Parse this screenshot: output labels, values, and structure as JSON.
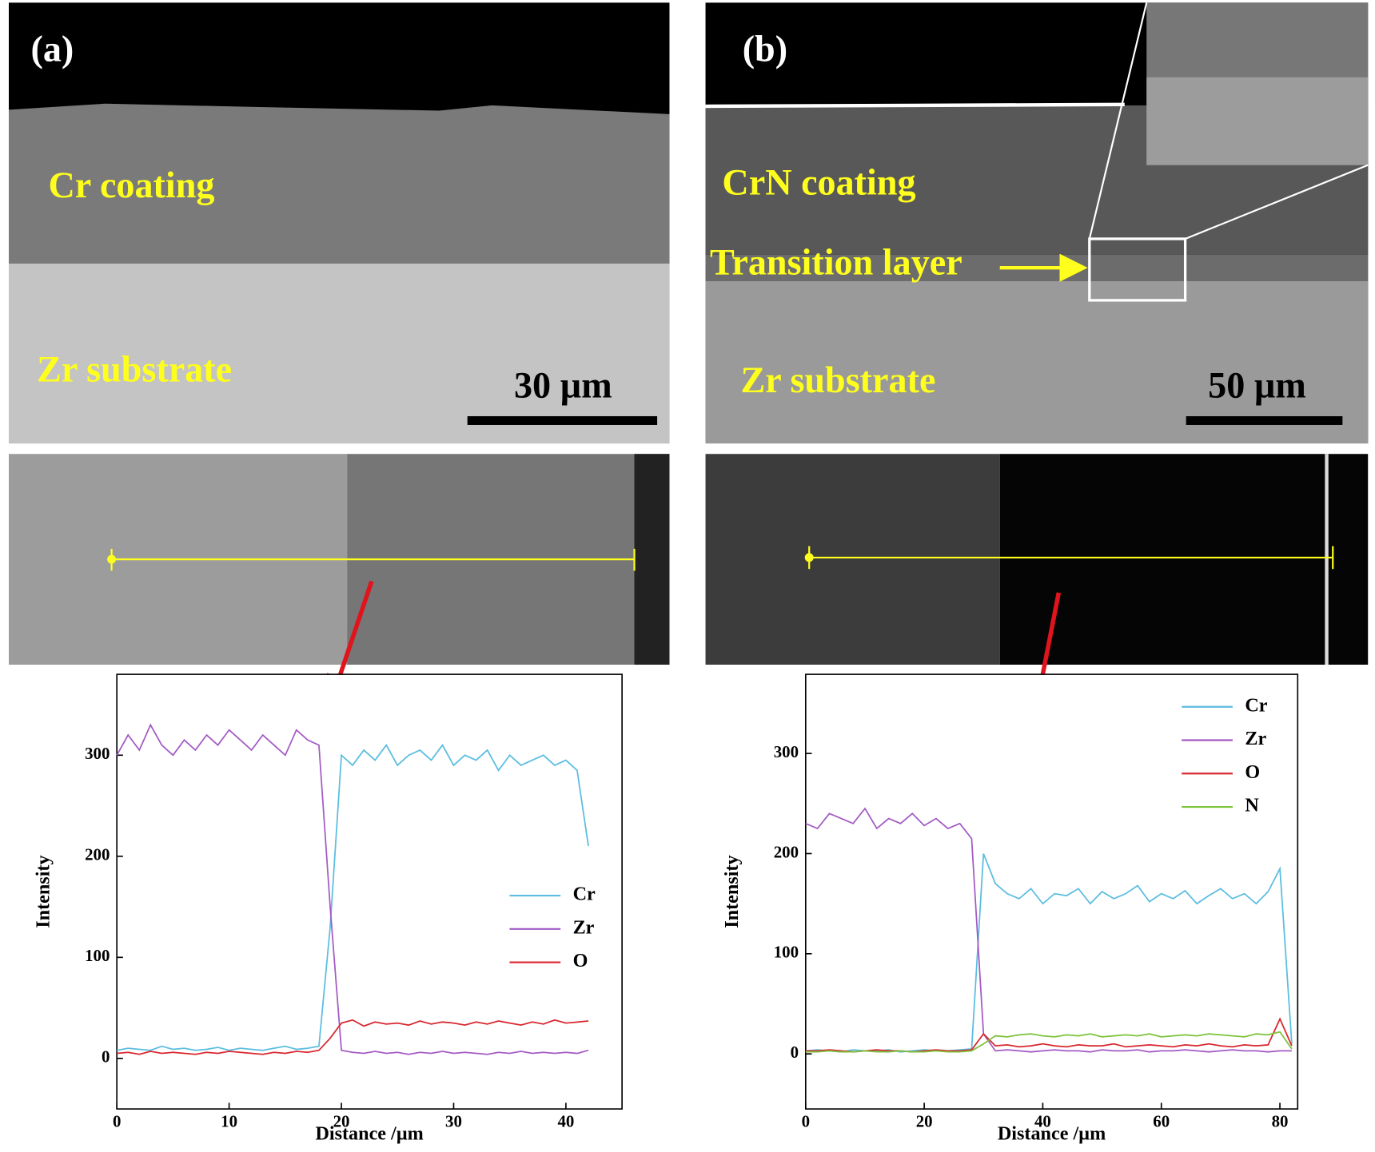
{
  "panels": [
    {
      "label": "(a)",
      "coating": "Cr coating",
      "substrate": "Zr substrate",
      "scale_bar": "30 µm"
    },
    {
      "label": "(b)",
      "coating": "CrN coating",
      "transition": "Transition layer",
      "substrate": "Zr substrate",
      "scale_bar": "50 µm"
    }
  ],
  "chart_data": [
    {
      "type": "line",
      "x_label": "Distance /µm",
      "y_label": "Intensity",
      "x": [
        0,
        1,
        2,
        3,
        4,
        5,
        6,
        7,
        8,
        9,
        10,
        11,
        12,
        13,
        14,
        15,
        16,
        17,
        18,
        19,
        20,
        21,
        22,
        23,
        24,
        25,
        26,
        27,
        28,
        29,
        30,
        31,
        32,
        33,
        34,
        35,
        36,
        37,
        38,
        39,
        40,
        41,
        42
      ],
      "series": [
        {
          "name": "Cr",
          "color": "#5bbde0",
          "values": [
            8,
            10,
            9,
            8,
            12,
            9,
            10,
            8,
            9,
            11,
            8,
            10,
            9,
            8,
            10,
            12,
            9,
            10,
            12,
            130,
            300,
            290,
            305,
            295,
            310,
            290,
            300,
            305,
            295,
            310,
            290,
            300,
            295,
            305,
            285,
            300,
            290,
            295,
            300,
            290,
            295,
            285,
            210
          ]
        },
        {
          "name": "Zr",
          "color": "#a35bc4",
          "values": [
            300,
            320,
            305,
            330,
            310,
            300,
            315,
            305,
            320,
            310,
            325,
            315,
            305,
            320,
            310,
            300,
            325,
            315,
            310,
            150,
            8,
            6,
            5,
            7,
            5,
            6,
            4,
            6,
            5,
            7,
            5,
            6,
            5,
            4,
            6,
            5,
            7,
            5,
            6,
            5,
            6,
            5,
            8
          ]
        },
        {
          "name": "O",
          "color": "#d9262e",
          "values": [
            5,
            6,
            4,
            7,
            5,
            6,
            5,
            4,
            6,
            5,
            7,
            6,
            5,
            4,
            6,
            5,
            7,
            6,
            8,
            20,
            35,
            38,
            32,
            36,
            34,
            35,
            33,
            37,
            34,
            36,
            35,
            33,
            36,
            34,
            37,
            35,
            33,
            36,
            34,
            38,
            35,
            36,
            37
          ]
        }
      ],
      "xlim": [
        0,
        45
      ],
      "ylim": [
        -50,
        380
      ],
      "xticks": [
        0,
        10,
        20,
        30,
        40
      ],
      "yticks": [
        0,
        100,
        200,
        300
      ],
      "legend": "center right"
    },
    {
      "type": "line",
      "x_label": "Distance /µm",
      "y_label": "Intensity",
      "x": [
        0,
        2,
        4,
        6,
        8,
        10,
        12,
        14,
        16,
        18,
        20,
        22,
        24,
        26,
        28,
        30,
        32,
        34,
        36,
        38,
        40,
        42,
        44,
        46,
        48,
        50,
        52,
        54,
        56,
        58,
        60,
        62,
        64,
        66,
        68,
        70,
        72,
        74,
        76,
        78,
        80,
        82
      ],
      "series": [
        {
          "name": "Cr",
          "color": "#5bbde0",
          "values": [
            3,
            4,
            3,
            2,
            4,
            3,
            3,
            4,
            2,
            3,
            4,
            3,
            3,
            4,
            5,
            200,
            170,
            160,
            155,
            165,
            150,
            160,
            158,
            165,
            150,
            162,
            155,
            160,
            168,
            152,
            160,
            155,
            163,
            150,
            158,
            165,
            155,
            160,
            150,
            162,
            185,
            10
          ]
        },
        {
          "name": "Zr",
          "color": "#a35bc4",
          "values": [
            230,
            225,
            240,
            235,
            230,
            245,
            225,
            235,
            230,
            240,
            228,
            235,
            225,
            230,
            215,
            20,
            3,
            4,
            3,
            2,
            3,
            4,
            3,
            3,
            2,
            4,
            3,
            3,
            4,
            2,
            3,
            3,
            4,
            3,
            2,
            3,
            4,
            3,
            3,
            2,
            3,
            3
          ]
        },
        {
          "name": "O",
          "color": "#d9262e",
          "values": [
            3,
            3,
            4,
            3,
            2,
            3,
            4,
            3,
            3,
            2,
            3,
            4,
            3,
            3,
            4,
            20,
            8,
            9,
            7,
            8,
            10,
            8,
            7,
            9,
            8,
            8,
            10,
            7,
            8,
            9,
            8,
            7,
            9,
            8,
            10,
            8,
            7,
            9,
            8,
            9,
            35,
            8
          ]
        },
        {
          "name": "N",
          "color": "#7cc23a",
          "values": [
            2,
            2,
            3,
            2,
            2,
            3,
            2,
            2,
            3,
            2,
            2,
            3,
            2,
            2,
            3,
            10,
            18,
            17,
            19,
            20,
            18,
            17,
            19,
            18,
            20,
            17,
            18,
            19,
            18,
            20,
            17,
            18,
            19,
            18,
            20,
            19,
            18,
            17,
            20,
            19,
            22,
            5
          ]
        }
      ],
      "xlim": [
        0,
        83
      ],
      "ylim": [
        -55,
        379
      ],
      "xticks": [
        0,
        20,
        40,
        60,
        80
      ],
      "yticks": [
        0,
        100,
        200,
        300
      ],
      "legend": "upper right"
    }
  ]
}
